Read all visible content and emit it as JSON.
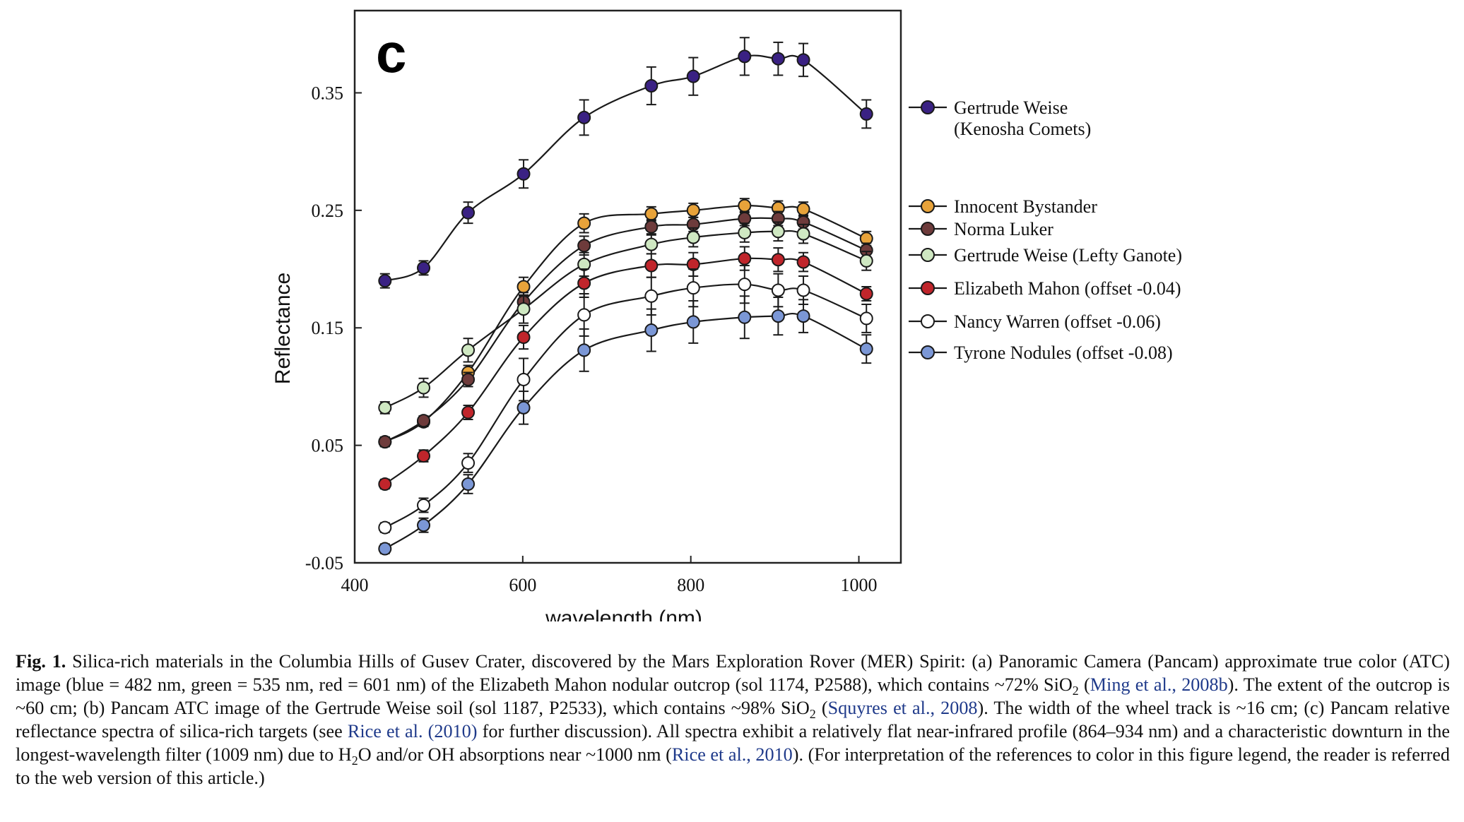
{
  "chart_data": {
    "type": "line",
    "panel_label": "c",
    "xlabel": "wavelength (nm)",
    "ylabel": "Reflectance",
    "xlim": [
      400,
      1050
    ],
    "ylim": [
      -0.05,
      0.42
    ],
    "xticks": [
      400,
      600,
      800,
      1000
    ],
    "yticks": [
      -0.05,
      0.05,
      0.15,
      0.25,
      0.35
    ],
    "ytick_labels": [
      "-0.05",
      "0.05",
      "0.15",
      "0.25",
      "0.35"
    ],
    "xtick_labels": [
      "400",
      "600",
      "800",
      "1000"
    ],
    "grid": false,
    "legend_position": "right",
    "x": [
      436,
      482,
      535,
      601,
      673,
      753,
      803,
      864,
      904,
      934,
      1009
    ],
    "series": [
      {
        "name": "Gertrude Weise",
        "name_line2": "(Kenosha Comets)",
        "color": "#3a2183",
        "values": [
          0.19,
          0.201,
          0.248,
          0.281,
          0.329,
          0.356,
          0.364,
          0.381,
          0.379,
          0.378,
          0.332
        ],
        "errors": [
          0.006,
          0.006,
          0.009,
          0.012,
          0.015,
          0.016,
          0.016,
          0.016,
          0.014,
          0.014,
          0.012
        ]
      },
      {
        "name": "Innocent Bystander",
        "name_line2": "",
        "color": "#e8a33a",
        "values": [
          0.053,
          0.07,
          0.112,
          0.185,
          0.239,
          0.247,
          0.25,
          0.254,
          0.252,
          0.251,
          0.226
        ],
        "errors": [
          0.004,
          0.004,
          0.006,
          0.008,
          0.008,
          0.006,
          0.006,
          0.006,
          0.006,
          0.006,
          0.006
        ]
      },
      {
        "name": "Norma Luker",
        "name_line2": "",
        "color": "#6e3b3b",
        "values": [
          0.053,
          0.071,
          0.106,
          0.172,
          0.22,
          0.236,
          0.238,
          0.243,
          0.243,
          0.24,
          0.216
        ],
        "errors": [
          0.004,
          0.004,
          0.006,
          0.008,
          0.008,
          0.006,
          0.006,
          0.006,
          0.006,
          0.006,
          0.006
        ]
      },
      {
        "name": "Gertrude Weise (Lefty Ganote)",
        "name_line2": "",
        "color": "#cfe8c2",
        "values": [
          0.082,
          0.099,
          0.131,
          0.166,
          0.204,
          0.221,
          0.227,
          0.231,
          0.232,
          0.23,
          0.207
        ],
        "errors": [
          0.005,
          0.008,
          0.01,
          0.012,
          0.01,
          0.008,
          0.008,
          0.008,
          0.008,
          0.008,
          0.008
        ]
      },
      {
        "name": "Elizabeth Mahon (offset -0.04)",
        "name_line2": "",
        "color": "#c0252b",
        "values": [
          0.017,
          0.041,
          0.078,
          0.142,
          0.188,
          0.203,
          0.204,
          0.209,
          0.208,
          0.206,
          0.179
        ],
        "errors": [
          0.004,
          0.005,
          0.006,
          0.01,
          0.012,
          0.01,
          0.01,
          0.01,
          0.01,
          0.008,
          0.006
        ]
      },
      {
        "name": "Nancy Warren (offset -0.06)",
        "name_line2": "",
        "color": "#ffffff",
        "values": [
          -0.02,
          -0.001,
          0.035,
          0.106,
          0.161,
          0.177,
          0.184,
          0.187,
          0.182,
          0.182,
          0.158
        ],
        "errors": [
          0.004,
          0.006,
          0.008,
          0.018,
          0.018,
          0.016,
          0.016,
          0.016,
          0.014,
          0.012,
          0.012
        ]
      },
      {
        "name": "Tyrone Nodules (offset -0.08)",
        "name_line2": "",
        "color": "#7b97d6",
        "values": [
          -0.038,
          -0.018,
          0.017,
          0.082,
          0.131,
          0.148,
          0.155,
          0.159,
          0.16,
          0.16,
          0.132
        ],
        "errors": [
          0.004,
          0.006,
          0.008,
          0.014,
          0.018,
          0.018,
          0.018,
          0.018,
          0.016,
          0.014,
          0.012
        ]
      }
    ]
  },
  "caption": {
    "label": "Fig. 1.",
    "t1": " Silica-rich materials in the Columbia Hills of Gusev Crater, discovered by the Mars Exploration Rover (MER) Spirit: (a) Panoramic Camera (Pancam) approximate true color (ATC) image (blue = 482 nm, green = 535 nm, red = 601 nm) of the Elizabeth Mahon nodular outcrop (sol 1174, P2588), which contains ~72% SiO",
    "sub1": "2",
    "t2": " (",
    "ref1": "Ming et al., 2008b",
    "t3": "). The extent of the outcrop is ~60 cm; (b) Pancam ATC image of the Gertrude Weise soil (sol 1187, P2533), which contains ~98% SiO",
    "sub2": "2",
    "t4": " (",
    "ref2": "Squyres et al., 2008",
    "t5": "). The width of the wheel track is ~16 cm; (c) Pancam relative reflectance spectra of silica-rich targets (see ",
    "ref3": "Rice et al. (2010)",
    "t6": " for further discussion). All spectra exhibit a relatively flat near-infrared profile (864–934 nm) and a characteristic downturn in the longest-wavelength filter (1009 nm) due to H",
    "sub3": "2",
    "t7": "O and/or OH absorptions near ~1000 nm (",
    "ref4": "Rice et al., 2010",
    "t8": "). (For interpretation of the references to color in this figure legend, the reader is referred to the web version of this article.)"
  }
}
